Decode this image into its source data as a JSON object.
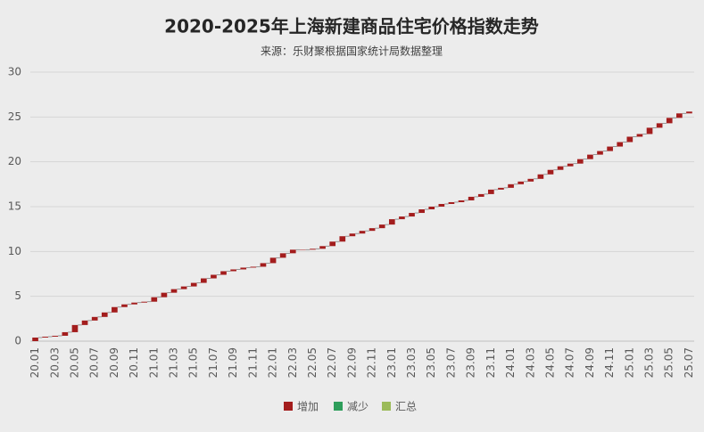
{
  "chart_data": {
    "type": "waterfall",
    "title": "2020-2025年上海新建商品住宅价格指数走势",
    "subtitle": "来源：乐财聚根据国家统计局数据整理",
    "categories": [
      "20.01",
      null,
      "20.03",
      null,
      "20.05",
      null,
      "20.07",
      null,
      "20.09",
      null,
      "20.11",
      null,
      "21.01",
      null,
      "21.03",
      null,
      "21.05",
      null,
      "21.07",
      null,
      "21.09",
      null,
      "21.11",
      null,
      "22.01",
      null,
      "22.03",
      null,
      "22.05",
      null,
      "22.07",
      null,
      "22.09",
      null,
      "22.11",
      null,
      "23.01",
      null,
      "23.03",
      null,
      "23.05",
      null,
      "23.07",
      null,
      "23.09",
      null,
      "23.11",
      null,
      "24.01",
      null,
      "24.03",
      null,
      "24.05",
      null,
      "24.07",
      null,
      "24.09",
      null,
      "24.11",
      null,
      "25.01",
      null,
      "25.03",
      null,
      "25.05",
      null,
      "25.07"
    ],
    "series": [
      {
        "name": "增加",
        "color": "#a31d1d",
        "values": [
          0.4,
          0.1,
          0.1,
          0.4,
          0.8,
          0.5,
          0.4,
          0.5,
          0.6,
          0.3,
          0.2,
          0.1,
          0.5,
          0.5,
          0.4,
          0.3,
          0.4,
          0.5,
          0.4,
          0.4,
          0.2,
          0.2,
          0.1,
          0.4,
          0.6,
          0.5,
          0.4,
          0.0,
          0.1,
          0.3,
          0.5,
          0.6,
          0.3,
          0.3,
          0.3,
          0.4,
          0.6,
          0.3,
          0.4,
          0.4,
          0.3,
          0.3,
          0.2,
          0.2,
          0.4,
          0.3,
          0.5,
          0.2,
          0.4,
          0.3,
          0.3,
          0.5,
          0.5,
          0.4,
          0.3,
          0.5,
          0.5,
          0.4,
          0.5,
          0.5,
          0.6,
          0.3,
          0.7,
          0.5,
          0.6,
          0.5,
          0.2
        ]
      },
      {
        "name": "减少",
        "color": "#2e9e5b"
      },
      {
        "name": "汇总",
        "color": "#9bbb59"
      }
    ],
    "ylim": [
      0,
      30
    ],
    "yticks": [
      0,
      5,
      10,
      15,
      20,
      25,
      30
    ],
    "grid": true
  }
}
